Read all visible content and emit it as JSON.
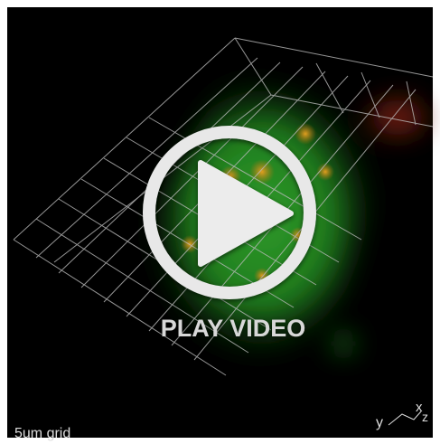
{
  "video": {
    "play_label": "PLAY VIDEO",
    "scale_label": "5um grid",
    "axes": {
      "y": "y",
      "x": "x",
      "z": "z"
    }
  }
}
